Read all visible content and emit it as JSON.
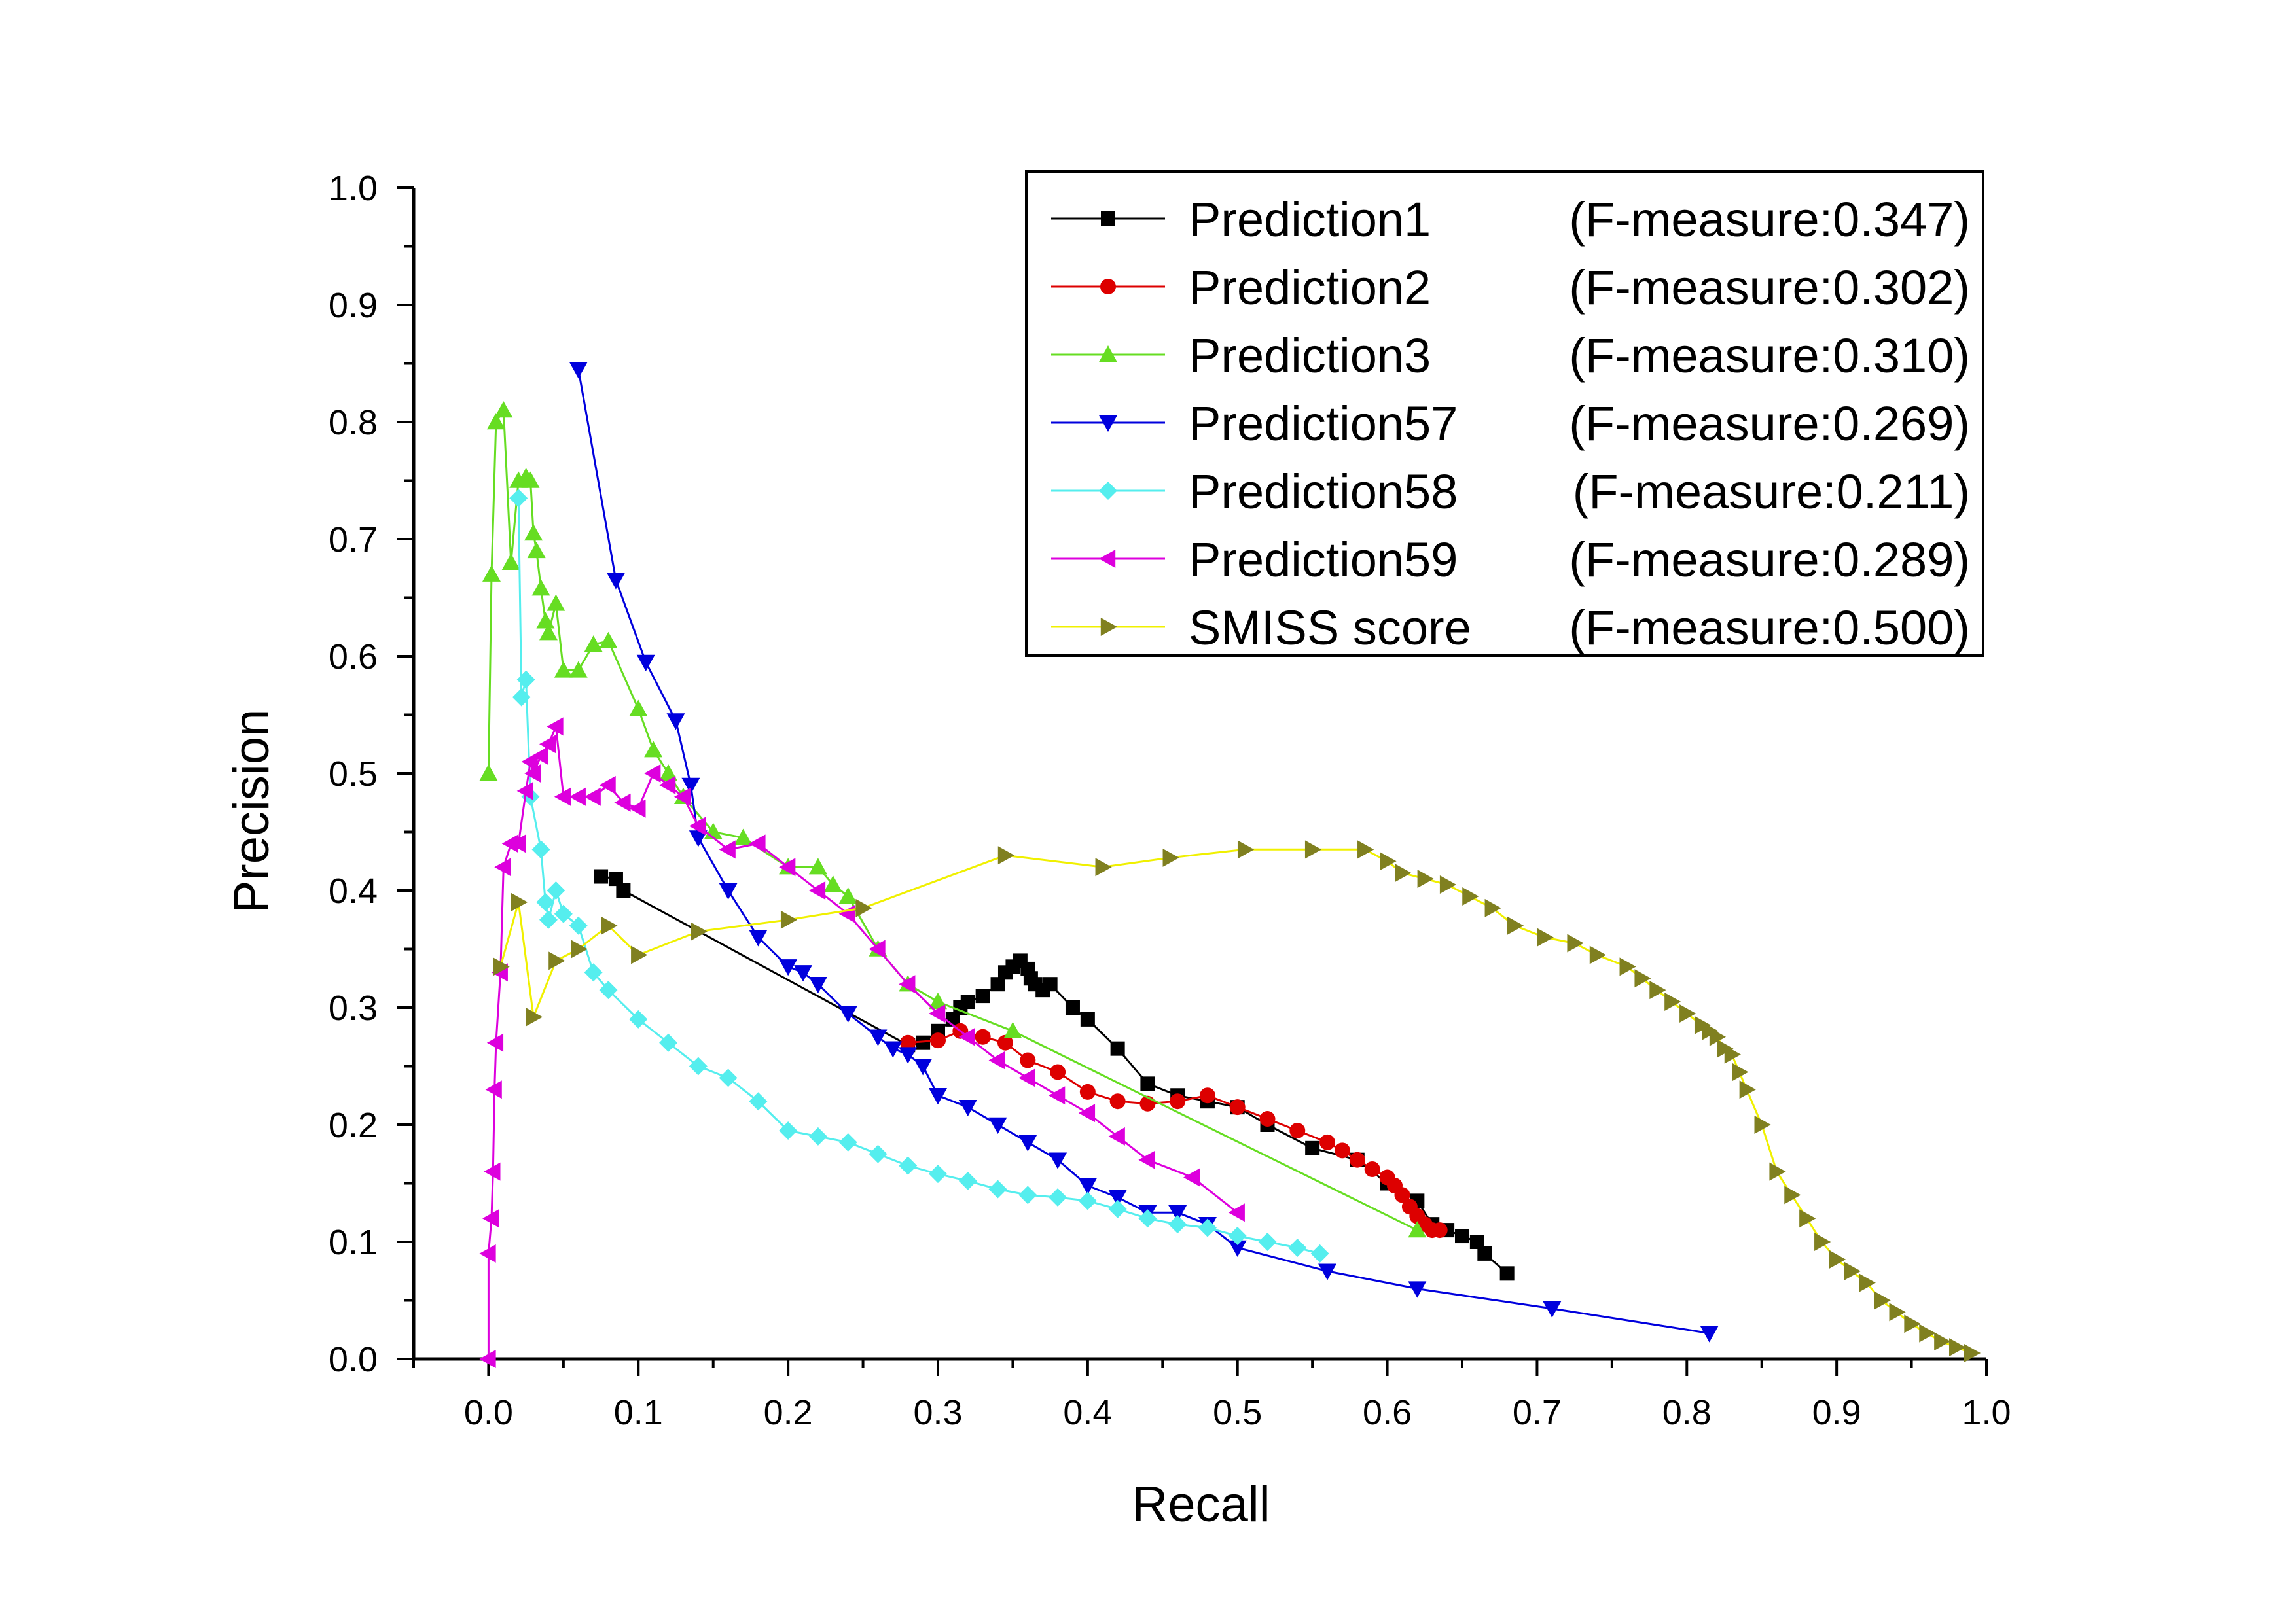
{
  "chart_data": {
    "type": "line",
    "xlabel": "Recall",
    "ylabel": "Precision",
    "xlim": [
      -0.05,
      1.0
    ],
    "ylim": [
      0.0,
      1.0
    ],
    "xticks": [
      "0.0",
      "0.1",
      "0.2",
      "0.3",
      "0.4",
      "0.5",
      "0.6",
      "0.7",
      "0.8",
      "0.9",
      "1.0"
    ],
    "yticks": [
      "0.0",
      "0.1",
      "0.2",
      "0.3",
      "0.4",
      "0.5",
      "0.6",
      "0.7",
      "0.8",
      "0.9",
      "1.0"
    ],
    "grid": false,
    "legend_position": "top-right",
    "series": [
      {
        "name": "Prediction1",
        "legend_suffix": "(F-measure:0.347)",
        "color": "#000000",
        "marker": "square",
        "x": [
          0.075,
          0.085,
          0.09,
          0.28,
          0.29,
          0.3,
          0.31,
          0.315,
          0.32,
          0.33,
          0.34,
          0.345,
          0.35,
          0.355,
          0.36,
          0.362,
          0.365,
          0.37,
          0.375,
          0.39,
          0.4,
          0.42,
          0.44,
          0.46,
          0.48,
          0.5,
          0.52,
          0.55,
          0.58,
          0.6,
          0.62,
          0.63,
          0.64,
          0.65,
          0.66,
          0.665,
          0.68
        ],
        "y": [
          0.412,
          0.41,
          0.4,
          0.268,
          0.27,
          0.28,
          0.29,
          0.3,
          0.305,
          0.31,
          0.32,
          0.33,
          0.335,
          0.34,
          0.333,
          0.325,
          0.32,
          0.315,
          0.32,
          0.3,
          0.29,
          0.265,
          0.235,
          0.225,
          0.22,
          0.215,
          0.2,
          0.18,
          0.17,
          0.15,
          0.135,
          0.115,
          0.11,
          0.105,
          0.1,
          0.09,
          0.073
        ]
      },
      {
        "name": "Prediction2",
        "legend_suffix": "(F-measure:0.302)",
        "color": "#dd0000",
        "marker": "circle",
        "x": [
          0.28,
          0.3,
          0.315,
          0.33,
          0.345,
          0.36,
          0.38,
          0.4,
          0.42,
          0.44,
          0.46,
          0.48,
          0.5,
          0.52,
          0.54,
          0.56,
          0.57,
          0.58,
          0.59,
          0.6,
          0.605,
          0.61,
          0.615,
          0.62,
          0.625,
          0.63,
          0.635
        ],
        "y": [
          0.27,
          0.272,
          0.28,
          0.275,
          0.27,
          0.255,
          0.245,
          0.228,
          0.22,
          0.218,
          0.22,
          0.225,
          0.215,
          0.205,
          0.195,
          0.185,
          0.178,
          0.17,
          0.162,
          0.155,
          0.148,
          0.14,
          0.13,
          0.122,
          0.115,
          0.11,
          0.11
        ]
      },
      {
        "name": "Prediction3",
        "legend_suffix": "(F-measure:0.310)",
        "color": "#66dd22",
        "marker": "triangle-up",
        "x": [
          0.0,
          0.002,
          0.005,
          0.01,
          0.015,
          0.02,
          0.025,
          0.028,
          0.03,
          0.032,
          0.035,
          0.038,
          0.04,
          0.045,
          0.05,
          0.06,
          0.07,
          0.08,
          0.1,
          0.11,
          0.12,
          0.13,
          0.15,
          0.17,
          0.2,
          0.22,
          0.23,
          0.24,
          0.26,
          0.28,
          0.3,
          0.35,
          0.62
        ],
        "y": [
          0.5,
          0.67,
          0.8,
          0.81,
          0.68,
          0.75,
          0.753,
          0.75,
          0.705,
          0.69,
          0.658,
          0.63,
          0.62,
          0.645,
          0.588,
          0.588,
          0.61,
          0.613,
          0.555,
          0.52,
          0.5,
          0.48,
          0.45,
          0.445,
          0.42,
          0.42,
          0.405,
          0.395,
          0.35,
          0.32,
          0.305,
          0.28,
          0.11
        ]
      },
      {
        "name": "Prediction57",
        "legend_suffix": "(F-measure:0.269)",
        "color": "#0000dd",
        "marker": "triangle-down",
        "x": [
          0.06,
          0.085,
          0.105,
          0.125,
          0.135,
          0.14,
          0.16,
          0.18,
          0.2,
          0.21,
          0.22,
          0.24,
          0.26,
          0.27,
          0.28,
          0.29,
          0.3,
          0.32,
          0.34,
          0.36,
          0.38,
          0.4,
          0.42,
          0.44,
          0.46,
          0.48,
          0.5,
          0.56,
          0.62,
          0.71,
          0.815
        ],
        "y": [
          0.845,
          0.665,
          0.595,
          0.545,
          0.49,
          0.445,
          0.4,
          0.36,
          0.335,
          0.33,
          0.32,
          0.295,
          0.275,
          0.265,
          0.26,
          0.25,
          0.225,
          0.215,
          0.2,
          0.185,
          0.17,
          0.148,
          0.138,
          0.125,
          0.125,
          0.115,
          0.095,
          0.075,
          0.06,
          0.043,
          0.022
        ]
      },
      {
        "name": "Prediction58",
        "legend_suffix": "(F-measure:0.211)",
        "color": "#55eeee",
        "marker": "diamond",
        "x": [
          0.02,
          0.022,
          0.025,
          0.028,
          0.035,
          0.038,
          0.04,
          0.045,
          0.05,
          0.06,
          0.07,
          0.08,
          0.1,
          0.12,
          0.14,
          0.16,
          0.18,
          0.2,
          0.22,
          0.24,
          0.26,
          0.28,
          0.3,
          0.32,
          0.34,
          0.36,
          0.38,
          0.4,
          0.42,
          0.44,
          0.46,
          0.48,
          0.5,
          0.52,
          0.54,
          0.555
        ],
        "y": [
          0.735,
          0.565,
          0.58,
          0.48,
          0.435,
          0.39,
          0.375,
          0.4,
          0.38,
          0.37,
          0.33,
          0.315,
          0.29,
          0.27,
          0.25,
          0.24,
          0.22,
          0.195,
          0.19,
          0.185,
          0.175,
          0.165,
          0.158,
          0.152,
          0.145,
          0.14,
          0.138,
          0.135,
          0.128,
          0.12,
          0.115,
          0.112,
          0.105,
          0.1,
          0.095,
          0.09
        ]
      },
      {
        "name": "Prediction59",
        "legend_suffix": "(F-measure:0.289)",
        "color": "#dd00dd",
        "marker": "triangle-left",
        "x": [
          0.0,
          0.0,
          0.002,
          0.003,
          0.004,
          0.005,
          0.008,
          0.01,
          0.015,
          0.02,
          0.025,
          0.028,
          0.03,
          0.035,
          0.04,
          0.045,
          0.05,
          0.06,
          0.07,
          0.08,
          0.09,
          0.1,
          0.11,
          0.12,
          0.13,
          0.14,
          0.16,
          0.18,
          0.2,
          0.22,
          0.24,
          0.26,
          0.28,
          0.3,
          0.32,
          0.34,
          0.36,
          0.38,
          0.4,
          0.42,
          0.44,
          0.47,
          0.5
        ],
        "y": [
          0.0,
          0.09,
          0.12,
          0.16,
          0.23,
          0.27,
          0.33,
          0.42,
          0.44,
          0.44,
          0.485,
          0.51,
          0.5,
          0.515,
          0.525,
          0.54,
          0.48,
          0.48,
          0.48,
          0.49,
          0.475,
          0.47,
          0.5,
          0.49,
          0.48,
          0.455,
          0.435,
          0.44,
          0.42,
          0.4,
          0.38,
          0.35,
          0.32,
          0.295,
          0.275,
          0.255,
          0.24,
          0.225,
          0.21,
          0.19,
          0.17,
          0.155,
          0.125
        ]
      },
      {
        "name": "SMISS score",
        "legend_suffix": "(F-measure:0.500)",
        "color": "#808020",
        "line_color": "#f0f000",
        "marker": "triangle-right",
        "x": [
          0.008,
          0.02,
          0.03,
          0.045,
          0.06,
          0.08,
          0.1,
          0.14,
          0.2,
          0.25,
          0.345,
          0.41,
          0.455,
          0.505,
          0.55,
          0.585,
          0.6,
          0.61,
          0.625,
          0.64,
          0.655,
          0.67,
          0.685,
          0.705,
          0.725,
          0.74,
          0.76,
          0.77,
          0.78,
          0.79,
          0.8,
          0.81,
          0.815,
          0.82,
          0.825,
          0.83,
          0.835,
          0.84,
          0.85,
          0.86,
          0.87,
          0.88,
          0.89,
          0.9,
          0.91,
          0.92,
          0.93,
          0.94,
          0.95,
          0.96,
          0.97,
          0.98,
          0.99
        ],
        "y": [
          0.335,
          0.39,
          0.292,
          0.34,
          0.35,
          0.37,
          0.345,
          0.365,
          0.375,
          0.385,
          0.43,
          0.42,
          0.428,
          0.435,
          0.435,
          0.435,
          0.425,
          0.415,
          0.41,
          0.405,
          0.395,
          0.385,
          0.37,
          0.36,
          0.355,
          0.345,
          0.335,
          0.325,
          0.315,
          0.305,
          0.295,
          0.285,
          0.28,
          0.275,
          0.265,
          0.26,
          0.245,
          0.23,
          0.2,
          0.16,
          0.14,
          0.12,
          0.1,
          0.085,
          0.075,
          0.065,
          0.05,
          0.04,
          0.03,
          0.022,
          0.015,
          0.01,
          0.005
        ]
      }
    ]
  }
}
